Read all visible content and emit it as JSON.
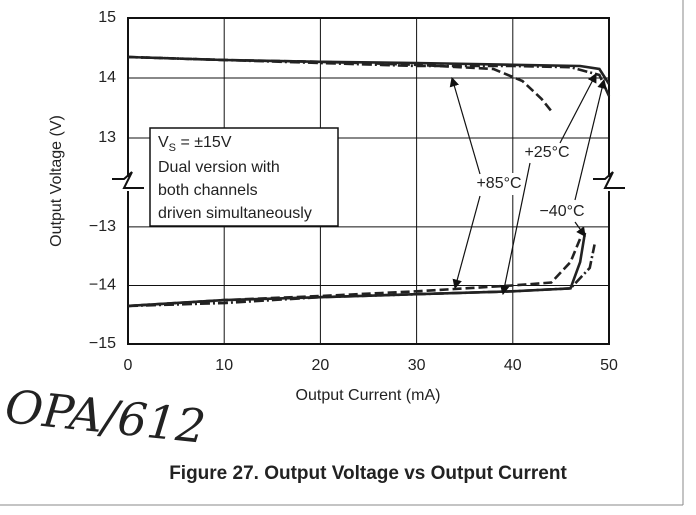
{
  "chart_data": {
    "type": "line",
    "title": "Figure 27. Output Voltage vs Output Current",
    "x_label": "Output Current (mA)",
    "y_label": "Output Voltage (V)",
    "xlim": [
      0,
      50
    ],
    "xticks": [
      0,
      10,
      20,
      30,
      40,
      50
    ],
    "ylim": [
      -15,
      15
    ],
    "y_break": [
      -12.25,
      12.25
    ],
    "yticks": [
      15,
      14,
      13,
      {
        "value": -13,
        "label": "−13"
      },
      {
        "value": -14,
        "label": "−14"
      },
      {
        "value": -15,
        "label": "−15"
      }
    ],
    "grid": true,
    "note": {
      "symbol": "V",
      "subscript": "S",
      "rest": " = ±15V",
      "lines": [
        "Dual version with",
        "both channels",
        "driven simultaneously"
      ]
    },
    "handwriting": "OPA/612",
    "series": [
      {
        "name": "+85°C",
        "color": "#222222",
        "dash": "9 4",
        "upper": {
          "x": [
            0,
            10,
            20,
            30,
            38,
            41,
            43,
            44
          ],
          "values": [
            14.35,
            14.3,
            14.27,
            14.22,
            14.15,
            13.95,
            13.65,
            13.45
          ]
        },
        "lower": {
          "x": [
            0,
            10,
            20,
            30,
            40,
            44,
            46,
            47
          ],
          "values": [
            -14.35,
            -14.25,
            -14.18,
            -14.1,
            -14.0,
            -13.95,
            -13.6,
            -13.2
          ]
        }
      },
      {
        "name": "+25°C",
        "color": "#222222",
        "dash": "none",
        "upper": {
          "x": [
            0,
            10,
            20,
            30,
            40,
            47,
            49,
            50
          ],
          "values": [
            14.35,
            14.3,
            14.27,
            14.25,
            14.22,
            14.2,
            14.15,
            13.9
          ]
        },
        "lower": {
          "x": [
            0,
            10,
            20,
            30,
            40,
            46,
            47,
            47.5
          ],
          "values": [
            -14.35,
            -14.25,
            -14.2,
            -14.15,
            -14.1,
            -14.05,
            -13.6,
            -13.1
          ]
        }
      },
      {
        "name": "−40°C",
        "color": "#222222",
        "dash": "10 3 2 3",
        "upper": {
          "x": [
            0,
            10,
            20,
            30,
            40,
            46,
            49,
            50
          ],
          "values": [
            14.35,
            14.3,
            14.25,
            14.2,
            14.2,
            14.18,
            14.05,
            13.7
          ]
        },
        "lower": {
          "x": [
            0,
            10,
            20,
            30,
            40,
            46,
            48,
            48.5
          ],
          "values": [
            -14.35,
            -14.3,
            -14.2,
            -14.15,
            -14.1,
            -14.05,
            -13.7,
            -13.3
          ]
        }
      }
    ]
  }
}
